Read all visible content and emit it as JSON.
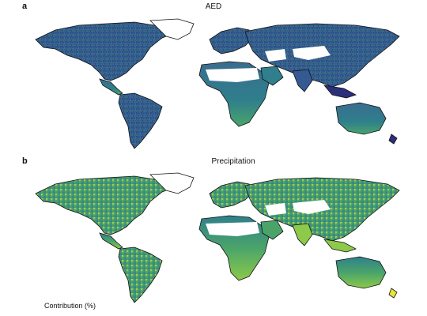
{
  "figure": {
    "panels": [
      {
        "letter": "a",
        "title": "AED",
        "palette": "viridis-dark"
      },
      {
        "letter": "b",
        "title": "Precipitation",
        "palette": "viridis-bright"
      }
    ],
    "legend_title": "Contribution (%)",
    "colors": {
      "ocean": "#ffffff",
      "coastline": "#111111",
      "no_data_land": "#ffffff",
      "dark_blue": "#2c2f7a",
      "blue": "#355a93",
      "teal": "#2f7f8c",
      "green": "#4aa46a",
      "light_green": "#8dc94a",
      "yellow": "#e7e43b"
    }
  }
}
